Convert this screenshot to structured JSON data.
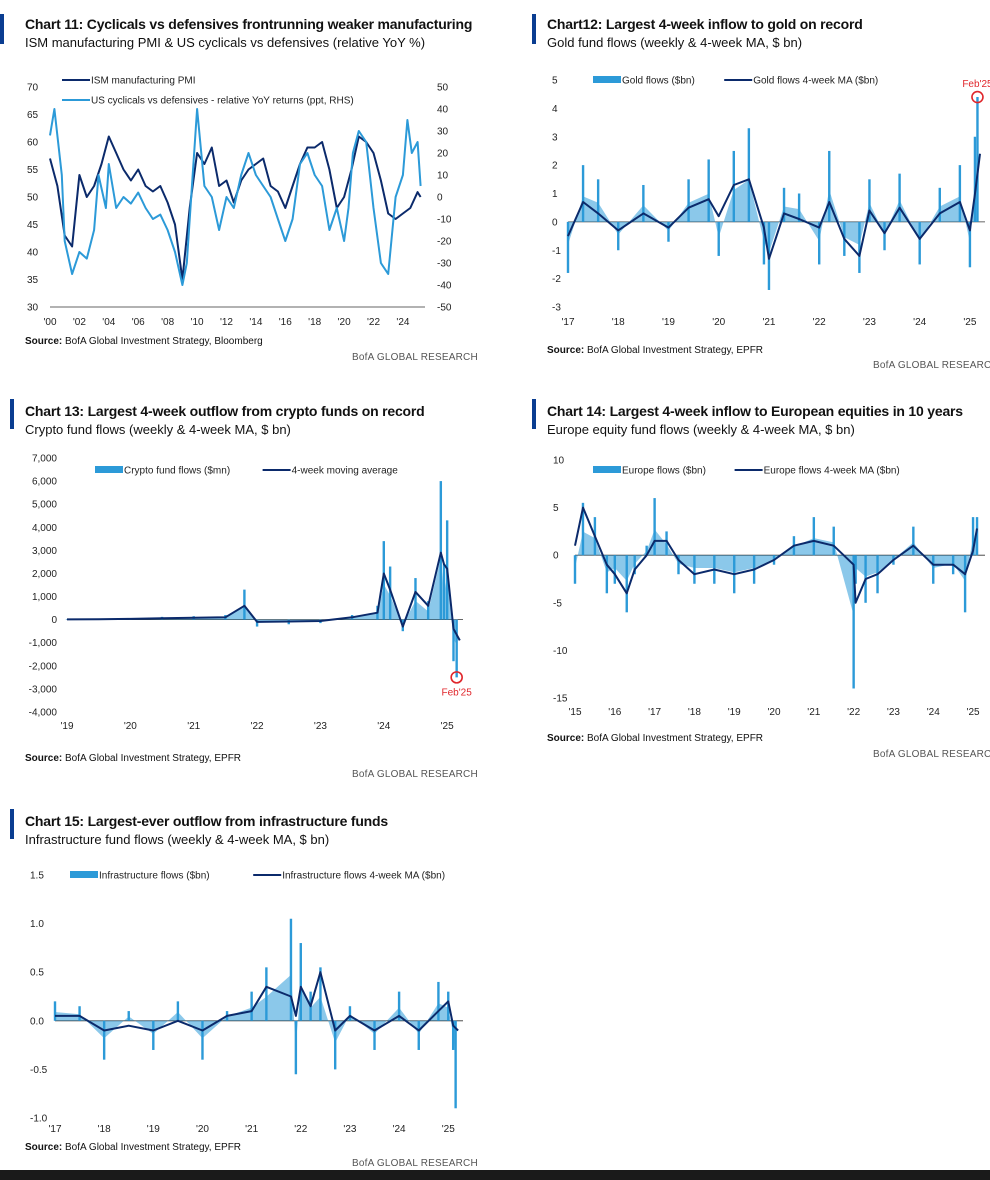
{
  "brand": "BofA GLOBAL RESEARCH",
  "source_label": "Source:",
  "charts": [
    {
      "id": "c11",
      "title": "Chart 11: Cyclicals vs defensives frontrunning weaker manufacturing",
      "subtitle": "ISM manufacturing PMI & US cyclicals vs defensives (relative YoY %)",
      "source": "BofA Global Investment Strategy, Bloomberg",
      "chart_data": {
        "type": "line",
        "x_ticks": [
          "'00",
          "'02",
          "'04",
          "'06",
          "'08",
          "'10",
          "'12",
          "'14",
          "'16",
          "'18",
          "'20",
          "'22",
          "'24"
        ],
        "x_range": [
          2000,
          2025.5
        ],
        "y_ticks": [
          "70",
          "65",
          "60",
          "55",
          "50",
          "45",
          "40",
          "35",
          "30"
        ],
        "y_range": [
          30,
          70
        ],
        "y2_ticks": [
          "50",
          "40",
          "30",
          "20",
          "10",
          "0",
          "-10",
          "-20",
          "-30",
          "-40",
          "-50"
        ],
        "y2_range": [
          -50,
          50
        ],
        "series": [
          {
            "name": "ISM manufacturing PMI",
            "axis": "left",
            "color": "#0b2a6b",
            "x": [
              2000,
              2000.5,
              2001,
              2001.5,
              2002,
              2002.5,
              2003,
              2003.5,
              2004,
              2004.5,
              2005,
              2005.5,
              2006,
              2006.5,
              2007,
              2007.5,
              2008,
              2008.5,
              2009,
              2009.5,
              2010,
              2010.5,
              2011,
              2011.5,
              2012,
              2012.5,
              2013,
              2013.5,
              2014,
              2014.5,
              2015,
              2015.5,
              2016,
              2016.5,
              2017,
              2017.5,
              2018,
              2018.5,
              2019,
              2019.5,
              2020,
              2020.5,
              2021,
              2021.5,
              2022,
              2022.5,
              2023,
              2023.5,
              2024,
              2024.5,
              2025,
              2025.2
            ],
            "y": [
              57,
              52,
              43,
              41,
              54,
              50,
              52,
              56,
              61,
              58,
              55,
              53,
              55,
              52,
              51,
              52,
              49,
              45,
              35,
              48,
              58,
              56,
              59,
              52,
              53,
              49,
              53,
              55,
              56,
              57,
              52,
              51,
              48,
              52,
              56,
              59,
              59,
              60,
              55,
              48,
              50,
              55,
              61,
              60,
              58,
              53,
              47,
              46,
              47,
              48,
              50.9,
              50
            ]
          },
          {
            "name": "US cyclicals vs defensives - relative YoY returns (ppt, RHS)",
            "axis": "right",
            "color": "#2c9ad8",
            "x": [
              2000,
              2000.3,
              2000.8,
              2001,
              2001.5,
              2002,
              2002.5,
              2003,
              2003.3,
              2003.8,
              2004,
              2004.5,
              2005,
              2005.5,
              2006,
              2006.5,
              2007,
              2007.5,
              2008,
              2008.5,
              2009,
              2009.3,
              2009.6,
              2010,
              2010.5,
              2011,
              2011.5,
              2012,
              2012.5,
              2013,
              2013.5,
              2014,
              2014.5,
              2015,
              2015.5,
              2016,
              2016.5,
              2017,
              2017.5,
              2018,
              2018.5,
              2019,
              2019.5,
              2020,
              2020.3,
              2020.6,
              2021,
              2021.5,
              2022,
              2022.5,
              2023,
              2023.5,
              2024,
              2024.3,
              2024.6,
              2025,
              2025.2
            ],
            "y": [
              28,
              40,
              10,
              -20,
              -35,
              -25,
              -28,
              -15,
              10,
              -5,
              15,
              -5,
              0,
              -3,
              2,
              -5,
              -10,
              -8,
              -15,
              -25,
              -40,
              -30,
              0,
              40,
              5,
              0,
              -15,
              0,
              -5,
              10,
              20,
              10,
              5,
              0,
              -10,
              -20,
              -10,
              15,
              20,
              10,
              5,
              -15,
              -5,
              -20,
              -5,
              20,
              30,
              25,
              -5,
              -30,
              -35,
              0,
              10,
              35,
              20,
              25,
              5
            ]
          }
        ]
      }
    },
    {
      "id": "c12",
      "title": "Chart12: Largest 4-week inflow to gold on record",
      "subtitle": "Gold fund flows (weekly & 4-week MA, $ bn)",
      "source": "BofA Global Investment Strategy, EPFR",
      "annotation": "Feb'25",
      "chart_data": {
        "type": "bar+line",
        "x_ticks": [
          "'17",
          "'18",
          "'19",
          "'20",
          "'21",
          "'22",
          "'23",
          "'24",
          "'25"
        ],
        "x_range": [
          2017,
          2025.3
        ],
        "y_ticks": [
          "5",
          "4",
          "3",
          "2",
          "1",
          "0",
          "-1",
          "-2",
          "-3"
        ],
        "y_range": [
          -3,
          5
        ],
        "series": [
          {
            "name": "Gold flows ($bn)",
            "kind": "bar",
            "color": "#2c9ad8",
            "x": [
              2017,
              2017.3,
              2017.6,
              2018,
              2018.5,
              2019,
              2019.4,
              2019.8,
              2020,
              2020.3,
              2020.6,
              2020.9,
              2021,
              2021.3,
              2021.6,
              2022,
              2022.2,
              2022.5,
              2022.8,
              2023,
              2023.3,
              2023.6,
              2024,
              2024.4,
              2024.8,
              2025,
              2025.1,
              2025.15
            ],
            "y": [
              -1.8,
              2,
              1.5,
              -1,
              1.3,
              -0.7,
              1.5,
              2.2,
              -1.2,
              2.5,
              3.3,
              -1.5,
              -2.4,
              1.2,
              1.0,
              -1.5,
              2.5,
              -1.2,
              -1.8,
              1.5,
              -1.0,
              1.7,
              -1.5,
              1.2,
              2,
              -1.6,
              3.0,
              4.4
            ]
          },
          {
            "name": "Gold flows 4-week MA ($bn)",
            "kind": "line",
            "color": "#0b2a6b",
            "x": [
              2017,
              2017.3,
              2017.6,
              2018,
              2018.5,
              2019,
              2019.4,
              2019.8,
              2020,
              2020.3,
              2020.6,
              2020.9,
              2021,
              2021.3,
              2021.6,
              2022,
              2022.2,
              2022.5,
              2022.8,
              2023,
              2023.3,
              2023.6,
              2024,
              2024.4,
              2024.8,
              2025,
              2025.1,
              2025.2
            ],
            "y": [
              -0.5,
              0.7,
              0.3,
              -0.3,
              0.3,
              -0.2,
              0.5,
              0.8,
              0.2,
              1.3,
              1.5,
              -0.2,
              -1.3,
              0.3,
              0.1,
              -0.2,
              0.7,
              -0.6,
              -1.2,
              0.4,
              -0.4,
              0.5,
              -0.6,
              0.3,
              0.7,
              -0.3,
              1.0,
              2.4
            ]
          }
        ]
      }
    },
    {
      "id": "c13",
      "title": "Chart 13: Largest 4-week outflow from crypto funds on record",
      "subtitle": "Crypto fund flows (weekly & 4-week MA, $ bn)",
      "source": "BofA Global Investment Strategy, EPFR",
      "annotation": "Feb'25",
      "chart_data": {
        "type": "bar+line",
        "x_ticks": [
          "'19",
          "'20",
          "'21",
          "'22",
          "'23",
          "'24",
          "'25"
        ],
        "x_range": [
          2019,
          2025.25
        ],
        "y_ticks": [
          "7,000",
          "6,000",
          "5,000",
          "4,000",
          "3,000",
          "2,000",
          "1,000",
          "0",
          "-1,000",
          "-2,000",
          "-3,000",
          "-4,000"
        ],
        "y_range": [
          -4000,
          7000
        ],
        "series": [
          {
            "name": "Crypto fund flows ($mn)",
            "kind": "bar",
            "color": "#2c9ad8",
            "x": [
              2019,
              2019.5,
              2020,
              2020.5,
              2021,
              2021.5,
              2021.8,
              2022,
              2022.5,
              2023,
              2023.5,
              2023.9,
              2024,
              2024.1,
              2024.3,
              2024.5,
              2024.7,
              2024.9,
              2024.95,
              2025,
              2025.1,
              2025.15
            ],
            "y": [
              20,
              50,
              60,
              120,
              150,
              200,
              1300,
              -300,
              -200,
              -150,
              200,
              600,
              3400,
              2300,
              -500,
              1800,
              800,
              6000,
              2400,
              4300,
              -1800,
              -2500
            ]
          },
          {
            "name": "4-week moving average",
            "kind": "line",
            "color": "#0b2a6b",
            "x": [
              2019,
              2019.5,
              2020,
              2020.5,
              2021,
              2021.5,
              2021.8,
              2022,
              2022.5,
              2023,
              2023.5,
              2023.9,
              2024,
              2024.1,
              2024.3,
              2024.5,
              2024.7,
              2024.9,
              2024.95,
              2025,
              2025.1,
              2025.2
            ],
            "y": [
              10,
              20,
              30,
              60,
              80,
              100,
              600,
              -100,
              -80,
              -60,
              100,
              300,
              2000,
              1300,
              -300,
              1200,
              600,
              2900,
              2400,
              2200,
              -400,
              -900
            ]
          }
        ]
      }
    },
    {
      "id": "c14",
      "title": "Chart 14: Largest 4-week inflow to European equities in 10 years",
      "subtitle": "Europe equity fund flows (weekly & 4-week MA, $ bn)",
      "source": "BofA Global Investment Strategy, EPFR",
      "chart_data": {
        "type": "bar+line",
        "x_ticks": [
          "'15",
          "'16",
          "'17",
          "'18",
          "'19",
          "'20",
          "'21",
          "'22",
          "'23",
          "'24",
          "'25"
        ],
        "x_range": [
          2015,
          2025.3
        ],
        "y_ticks": [
          "10",
          "5",
          "0",
          "-5",
          "-10",
          "-15"
        ],
        "y_range": [
          -15,
          10
        ],
        "series": [
          {
            "name": "Europe flows ($bn)",
            "kind": "bar",
            "color": "#2c9ad8",
            "x": [
              2015,
              2015.2,
              2015.5,
              2015.8,
              2016,
              2016.3,
              2016.5,
              2016.8,
              2017,
              2017.3,
              2017.6,
              2018,
              2018.5,
              2019,
              2019.5,
              2020,
              2020.5,
              2021,
              2021.5,
              2022,
              2022.05,
              2022.3,
              2022.6,
              2023,
              2023.5,
              2024,
              2024.5,
              2024.8,
              2025,
              2025.1
            ],
            "y": [
              -3,
              5.5,
              4,
              -4,
              -3,
              -6,
              -2,
              1,
              6,
              2.5,
              -2,
              -3,
              -3,
              -4,
              -3,
              -1,
              2,
              4,
              3,
              -14,
              -3,
              -5,
              -4,
              -1,
              3,
              -3,
              -2,
              -6,
              4,
              4
            ]
          },
          {
            "name": "Europe flows 4-week MA ($bn)",
            "kind": "line",
            "color": "#0b2a6b",
            "x": [
              2015,
              2015.2,
              2015.5,
              2015.8,
              2016,
              2016.3,
              2016.5,
              2016.8,
              2017,
              2017.3,
              2017.6,
              2018,
              2018.5,
              2019,
              2019.5,
              2020,
              2020.5,
              2021,
              2021.5,
              2022,
              2022.05,
              2022.3,
              2022.6,
              2023,
              2023.5,
              2024,
              2024.5,
              2024.8,
              2025,
              2025.1
            ],
            "y": [
              1,
              5,
              2,
              -1,
              -2,
              -4,
              -1.5,
              0,
              1.5,
              1.5,
              -0.5,
              -2,
              -1.5,
              -2,
              -1.5,
              -0.5,
              1,
              1.5,
              1,
              -1,
              -5,
              -2.5,
              -2,
              -0.5,
              1,
              -1,
              -1,
              -2,
              0.5,
              2.8
            ]
          }
        ]
      }
    },
    {
      "id": "c15",
      "title": "Chart 15: Largest-ever outflow from infrastructure funds",
      "subtitle": "Infrastructure fund flows (weekly & 4-week MA, $ bn)",
      "source": "BofA Global Investment Strategy, EPFR",
      "chart_data": {
        "type": "bar+line",
        "x_ticks": [
          "'17",
          "'18",
          "'19",
          "'20",
          "'21",
          "'22",
          "'23",
          "'24",
          "'25"
        ],
        "x_range": [
          2017,
          2025.3
        ],
        "y_ticks": [
          "1.5",
          "1.0",
          "0.5",
          "0.0",
          "-0.5",
          "-1.0"
        ],
        "y_range": [
          -1,
          1.5
        ],
        "series": [
          {
            "name": "Infrastructure flows ($bn)",
            "kind": "bar",
            "color": "#2c9ad8",
            "x": [
              2017,
              2017.5,
              2018,
              2018.5,
              2019,
              2019.5,
              2020,
              2020.5,
              2021,
              2021.3,
              2021.8,
              2021.9,
              2022,
              2022.2,
              2022.4,
              2022.7,
              2023,
              2023.5,
              2024,
              2024.4,
              2024.8,
              2025,
              2025.1,
              2025.15
            ],
            "y": [
              0.2,
              0.15,
              -0.4,
              0.1,
              -0.3,
              0.2,
              -0.4,
              0.1,
              0.3,
              0.55,
              1.05,
              -0.55,
              0.8,
              0.3,
              0.55,
              -0.5,
              0.15,
              -0.3,
              0.3,
              -0.3,
              0.4,
              0.3,
              -0.3,
              -0.9
            ]
          },
          {
            "name": "Infrastructure flows 4-week MA ($bn)",
            "kind": "line",
            "color": "#0b2a6b",
            "x": [
              2017,
              2017.5,
              2018,
              2018.5,
              2019,
              2019.5,
              2020,
              2020.5,
              2021,
              2021.3,
              2021.8,
              2021.9,
              2022,
              2022.2,
              2022.4,
              2022.7,
              2023,
              2023.5,
              2024,
              2024.4,
              2024.8,
              2025,
              2025.1,
              2025.2
            ],
            "y": [
              0.05,
              0.05,
              -0.1,
              -0.05,
              -0.1,
              0.0,
              -0.1,
              0.05,
              0.1,
              0.35,
              0.25,
              0.05,
              0.35,
              0.15,
              0.5,
              -0.1,
              0.05,
              -0.1,
              0.05,
              -0.1,
              0.1,
              0.2,
              -0.05,
              -0.1
            ]
          }
        ]
      }
    }
  ]
}
